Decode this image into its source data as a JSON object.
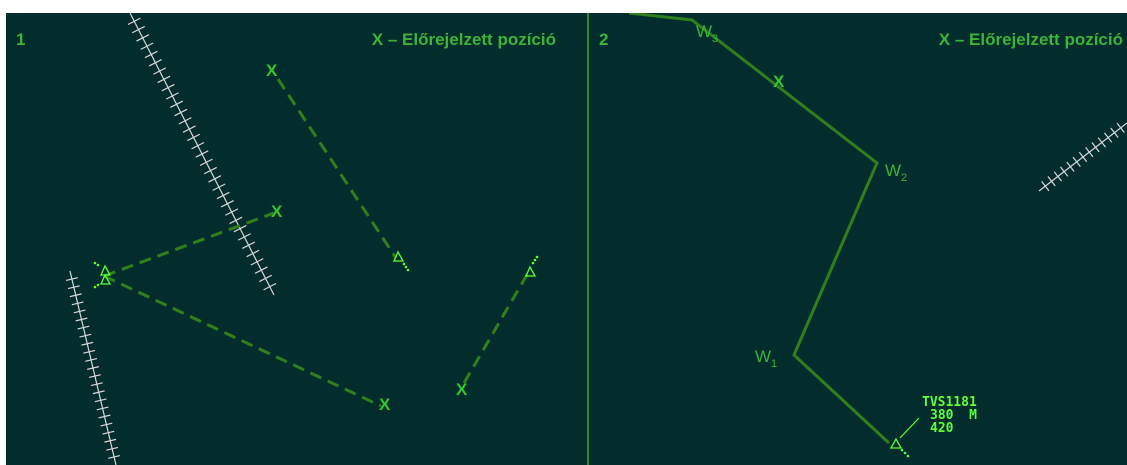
{
  "panel1": {
    "number": "1",
    "legend": "X – Előrejelzett pozíció",
    "predicted_marker": "X",
    "aircraft_icon": "triangle-aircraft-icon"
  },
  "panel2": {
    "number": "2",
    "legend": "X – Előrejelzett pozíció",
    "predicted_marker": "X",
    "waypoints": [
      {
        "letter": "W",
        "sub": "3"
      },
      {
        "letter": "W",
        "sub": "2"
      },
      {
        "letter": "W",
        "sub": "1"
      }
    ],
    "label": {
      "callsign": "TVS1181",
      "line2": "380  M",
      "line3": "420"
    }
  },
  "colors": {
    "background": "#032c2c",
    "route": "#2f7f1f",
    "label": "#3cb43a",
    "target": "#5cff3a",
    "runway": "#d8d8d8"
  }
}
